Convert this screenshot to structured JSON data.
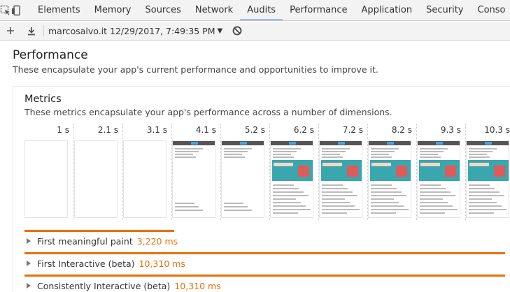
{
  "tabbar": {
    "tabs": [
      {
        "label": "Elements"
      },
      {
        "label": "Memory"
      },
      {
        "label": "Sources"
      },
      {
        "label": "Network"
      },
      {
        "label": "Audits",
        "active": true
      },
      {
        "label": "Performance"
      },
      {
        "label": "Application"
      },
      {
        "label": "Security"
      },
      {
        "label": "Conso"
      }
    ],
    "icons": [
      "inspect-element-icon",
      "device-toolbar-icon"
    ]
  },
  "toolbar": {
    "report_label": "marcosalvo.it 12/29/2017, 7:49:35 PM",
    "caret": "▼",
    "icons": [
      "add-icon",
      "download-icon",
      "clear-blocked-icon"
    ]
  },
  "performance": {
    "title": "Performance",
    "description": "These encapsulate your app's current performance and opportunities to improve it."
  },
  "metrics": {
    "title": "Metrics",
    "description": "These metrics encapsulate your app's performance across a number of dimensions.",
    "frames": [
      {
        "time": "1 s",
        "content": "blank"
      },
      {
        "time": "2.1 s",
        "content": "blank"
      },
      {
        "time": "3.1 s",
        "content": "blank"
      },
      {
        "time": "4.1 s",
        "content": "text"
      },
      {
        "time": "5.2 s",
        "content": "text"
      },
      {
        "time": "6.2 s",
        "content": "full"
      },
      {
        "time": "7.2 s",
        "content": "full"
      },
      {
        "time": "8.2 s",
        "content": "full"
      },
      {
        "time": "9.3 s",
        "content": "full"
      },
      {
        "time": "10.3 s",
        "content": "full"
      }
    ],
    "items": [
      {
        "label": "First meaningful paint",
        "value": "3,220 ms",
        "bar_fraction": 0.312
      },
      {
        "label": "First Interactive (beta)",
        "value": "10,310 ms",
        "bar_fraction": 1.0
      },
      {
        "label": "Consistently Interactive (beta)",
        "value": "10,310 ms",
        "bar_fraction": 1.0
      }
    ]
  },
  "colors": {
    "accent": "#e8700a",
    "active_tab": "#1a73e8"
  }
}
